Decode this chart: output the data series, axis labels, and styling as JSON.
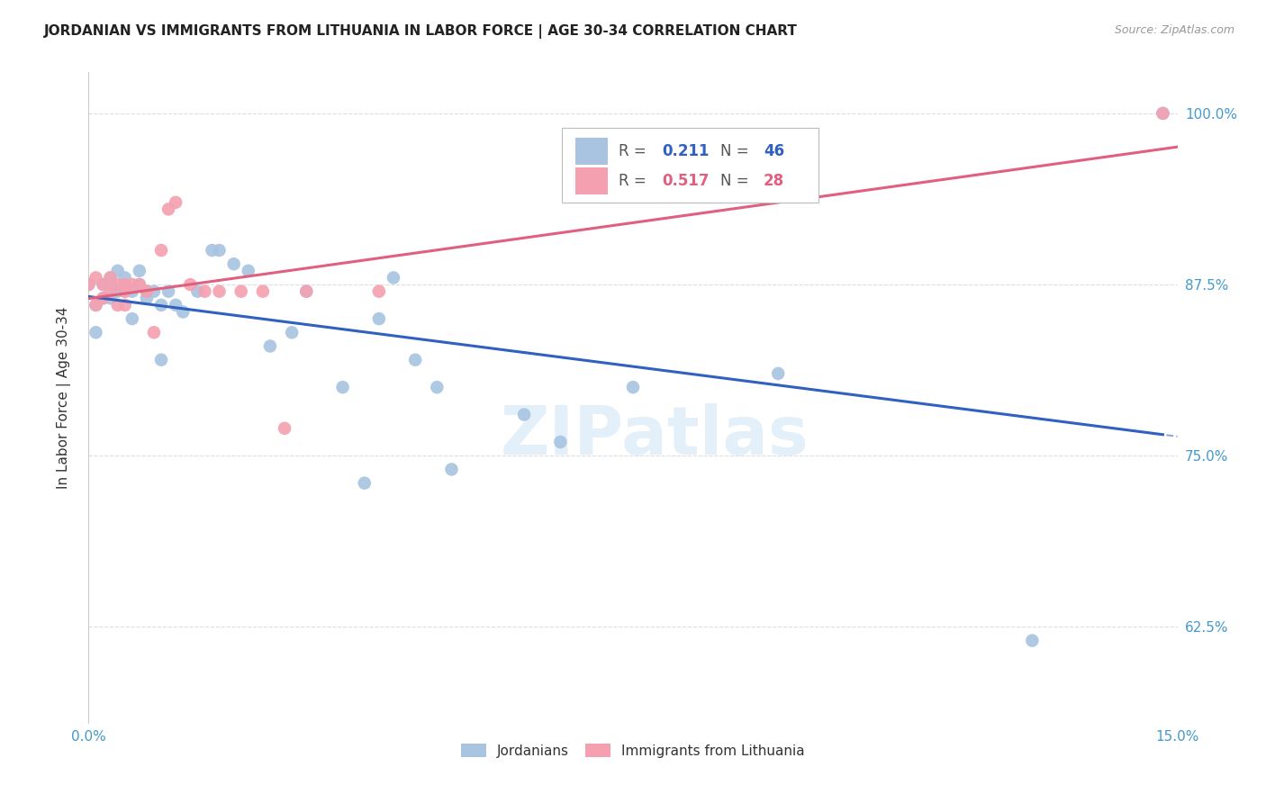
{
  "title": "JORDANIAN VS IMMIGRANTS FROM LITHUANIA IN LABOR FORCE | AGE 30-34 CORRELATION CHART",
  "source": "Source: ZipAtlas.com",
  "ylabel": "In Labor Force | Age 30-34",
  "xlim": [
    0.0,
    0.15
  ],
  "ylim": [
    0.555,
    1.03
  ],
  "yticks": [
    0.625,
    0.75,
    0.875,
    1.0
  ],
  "ytick_labels": [
    "62.5%",
    "75.0%",
    "87.5%",
    "100.0%"
  ],
  "xticks": [
    0.0,
    0.025,
    0.05,
    0.075,
    0.1,
    0.125,
    0.15
  ],
  "xtick_labels": [
    "0.0%",
    "",
    "",
    "",
    "",
    "",
    "15.0%"
  ],
  "jordanian_R": 0.211,
  "jordanian_N": 46,
  "lithuania_R": 0.517,
  "lithuania_N": 28,
  "jordanian_color": "#a8c4e0",
  "lithuania_color": "#f4a0b0",
  "jordanian_line_color": "#3060c0",
  "lithuania_line_color": "#e06080",
  "background_color": "#ffffff",
  "grid_color": "#dddddd",
  "jordanian_x": [
    0.0,
    0.001,
    0.001,
    0.002,
    0.002,
    0.003,
    0.003,
    0.003,
    0.004,
    0.004,
    0.005,
    0.005,
    0.005,
    0.006,
    0.006,
    0.007,
    0.007,
    0.008,
    0.008,
    0.009,
    0.01,
    0.01,
    0.011,
    0.012,
    0.013,
    0.015,
    0.017,
    0.018,
    0.02,
    0.022,
    0.025,
    0.028,
    0.03,
    0.035,
    0.038,
    0.04,
    0.042,
    0.045,
    0.048,
    0.05,
    0.06,
    0.065,
    0.075,
    0.095,
    0.13,
    0.148
  ],
  "jordanian_y": [
    0.875,
    0.86,
    0.84,
    0.875,
    0.865,
    0.88,
    0.875,
    0.865,
    0.87,
    0.885,
    0.87,
    0.875,
    0.88,
    0.87,
    0.85,
    0.875,
    0.885,
    0.87,
    0.865,
    0.87,
    0.82,
    0.86,
    0.87,
    0.86,
    0.855,
    0.87,
    0.9,
    0.9,
    0.89,
    0.885,
    0.83,
    0.84,
    0.87,
    0.8,
    0.73,
    0.85,
    0.88,
    0.82,
    0.8,
    0.74,
    0.78,
    0.76,
    0.8,
    0.81,
    0.615,
    1.0
  ],
  "lithuania_x": [
    0.0,
    0.001,
    0.001,
    0.002,
    0.002,
    0.003,
    0.003,
    0.004,
    0.004,
    0.005,
    0.005,
    0.005,
    0.006,
    0.007,
    0.008,
    0.009,
    0.01,
    0.011,
    0.012,
    0.014,
    0.016,
    0.018,
    0.021,
    0.024,
    0.027,
    0.03,
    0.04,
    0.148
  ],
  "lithuania_y": [
    0.875,
    0.86,
    0.88,
    0.875,
    0.865,
    0.88,
    0.87,
    0.875,
    0.86,
    0.875,
    0.87,
    0.86,
    0.875,
    0.875,
    0.87,
    0.84,
    0.9,
    0.93,
    0.935,
    0.875,
    0.87,
    0.87,
    0.87,
    0.87,
    0.77,
    0.87,
    0.87,
    1.0
  ],
  "watermark": "ZIPatlas"
}
